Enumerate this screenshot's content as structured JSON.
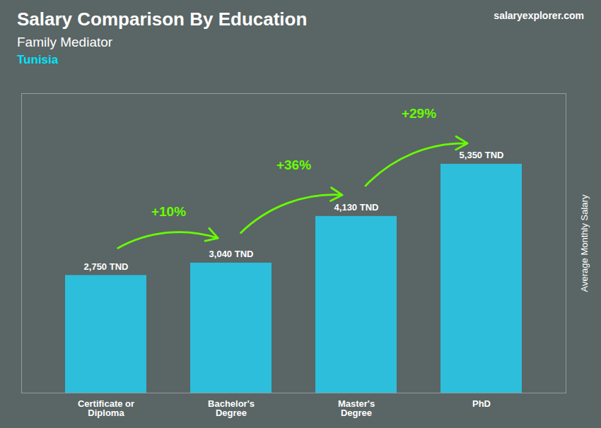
{
  "chart_data": {
    "type": "bar",
    "title": "Salary Comparison By Education",
    "subtitle": "Family Mediator",
    "ylabel": "Average Monthly Salary",
    "categories": [
      "Certificate or\nDiploma",
      "Bachelor's\nDegree",
      "Master's\nDegree",
      "PhD"
    ],
    "values": [
      2750,
      3040,
      4130,
      5350
    ],
    "value_labels": [
      "2,750 TND",
      "3,040 TND",
      "4,130 TND",
      "5,350 TND"
    ],
    "data_labels": true,
    "color": "#29c5e6",
    "ylim": [
      0,
      7000
    ],
    "tick_labels": "x",
    "grid": false,
    "annotations": [
      {
        "text": "Tunisia",
        "color": "#00e5ff"
      },
      {
        "text": "salaryexplorer.com"
      },
      {
        "text": "+10%",
        "from": "Certificate or\nDiploma",
        "to": "Bachelor's\nDegree",
        "color": "#66ff00"
      },
      {
        "text": "+36%",
        "from": "Bachelor's\nDegree",
        "to": "Master's\nDegree",
        "color": "#66ff00"
      },
      {
        "text": "+29%",
        "from": "Master's\nDegree",
        "to": "PhD",
        "color": "#66ff00"
      }
    ]
  }
}
